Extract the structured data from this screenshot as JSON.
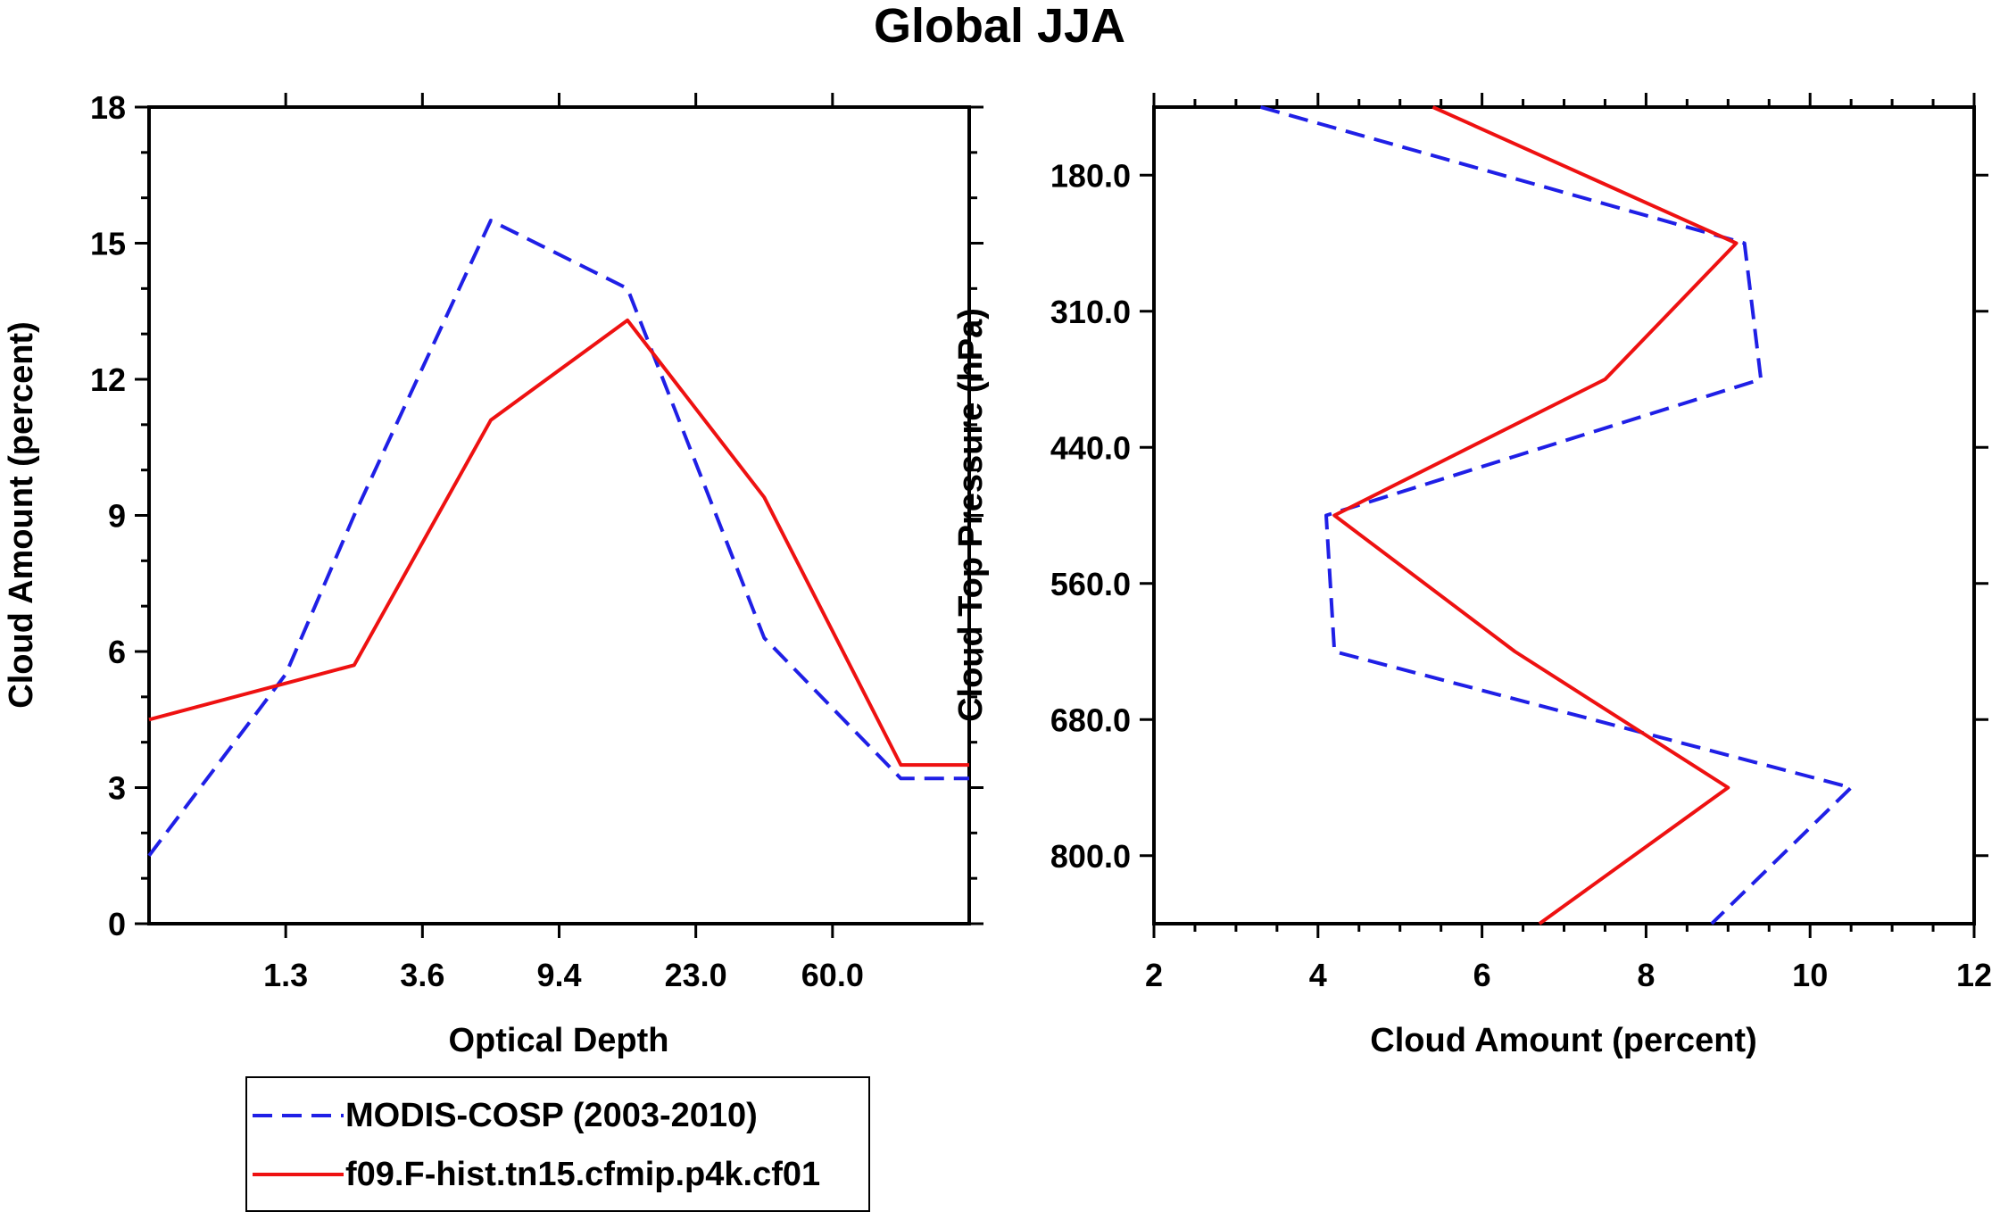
{
  "title": "Global JJA",
  "colors": {
    "obs": "#1f1fe6",
    "model": "#ee1111"
  },
  "legend": {
    "entries": [
      {
        "label": "MODIS-COSP (2003-2010)",
        "color": "#1f1fe6",
        "dash": true
      },
      {
        "label": "f09.F-hist.tn15.cfmip.p4k.cf01",
        "color": "#ee1111",
        "dash": false
      }
    ]
  },
  "chart_data": [
    {
      "type": "line",
      "name": "optical-depth-panel",
      "xlabel": "Optical Depth",
      "ylabel": "Cloud Amount (percent)",
      "xlim": [
        0,
        6
      ],
      "ylim": [
        0,
        18
      ],
      "xticks": [
        1,
        2,
        3,
        4,
        5
      ],
      "xtick_labels": [
        "1.3",
        "3.6",
        "9.4",
        "23.0",
        "60.0"
      ],
      "yticks": [
        0,
        3,
        6,
        9,
        12,
        15,
        18
      ],
      "ytick_labels": [
        "0",
        "3",
        "6",
        "9",
        "12",
        "15",
        "18"
      ],
      "series": [
        {
          "name": "MODIS-COSP (2003-2010)",
          "dash": true,
          "x": [
            0,
            1.0,
            1.5,
            2.5,
            3.5,
            4.5,
            5.5,
            6
          ],
          "y": [
            1.5,
            5.5,
            9.0,
            15.5,
            14.0,
            6.3,
            3.2,
            3.2
          ]
        },
        {
          "name": "f09.F-hist.tn15.cfmip.p4k.cf01",
          "dash": false,
          "x": [
            0,
            1.5,
            2.5,
            3.5,
            4.5,
            5.5,
            6
          ],
          "y": [
            4.5,
            5.7,
            11.1,
            13.3,
            9.4,
            3.5,
            3.5
          ]
        }
      ]
    },
    {
      "type": "line",
      "name": "cloud-top-pressure-panel",
      "xlabel": "Cloud Amount (percent)",
      "ylabel": "Cloud Top Pressure (hPa)",
      "xlim": [
        2,
        12
      ],
      "ylim": [
        0,
        6
      ],
      "xticks": [
        2,
        4,
        6,
        8,
        10,
        12
      ],
      "xtick_labels": [
        "2",
        "4",
        "6",
        "8",
        "10",
        "12"
      ],
      "yticks": [
        0.5,
        1.5,
        2.5,
        3.5,
        4.5,
        5.5
      ],
      "ytick_labels": [
        "180.0",
        "310.0",
        "440.0",
        "560.0",
        "680.0",
        "800.0"
      ],
      "y_note": "pressure bin index from top (0) to bottom (6)",
      "series": [
        {
          "name": "MODIS-COSP (2003-2010)",
          "dash": true,
          "amount": [
            3.3,
            9.2,
            9.4,
            4.1,
            4.2,
            10.5,
            8.8
          ],
          "level": [
            0,
            1,
            2,
            3,
            4,
            5,
            6
          ]
        },
        {
          "name": "f09.F-hist.tn15.cfmip.p4k.cf01",
          "dash": false,
          "amount": [
            5.4,
            9.1,
            7.5,
            4.2,
            6.4,
            9.0,
            6.7
          ],
          "level": [
            0,
            1,
            2,
            3,
            4,
            5,
            6
          ]
        }
      ]
    }
  ]
}
